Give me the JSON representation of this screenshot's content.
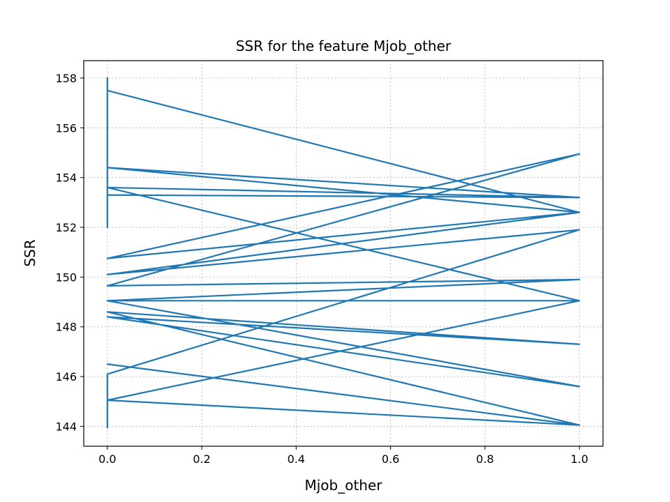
{
  "chart_data": {
    "type": "line",
    "title": "SSR for the feature Mjob_other",
    "xlabel": "Mjob_other",
    "ylabel": "SSR",
    "xlim": [
      -0.05,
      1.05
    ],
    "ylim": [
      143.2,
      158.7
    ],
    "xticks": [
      0.0,
      0.2,
      0.4,
      0.6,
      0.8,
      1.0
    ],
    "xtick_labels": [
      "0.0",
      "0.2",
      "0.4",
      "0.6",
      "0.8",
      "1.0"
    ],
    "yticks": [
      144,
      146,
      148,
      150,
      152,
      154,
      156,
      158
    ],
    "ytick_labels": [
      "144",
      "146",
      "148",
      "150",
      "152",
      "154",
      "156",
      "158"
    ],
    "grid": true,
    "series": [
      {
        "color": "#1f77b4",
        "x": [
          0,
          0,
          0,
          1,
          0,
          1,
          1,
          0,
          1,
          0,
          1,
          0,
          1,
          0,
          1,
          0,
          1,
          0,
          1,
          0,
          1,
          0,
          1,
          0,
          1,
          0,
          1,
          0,
          1,
          0,
          0
        ],
        "y": [
          158.0,
          152.0,
          157.5,
          152.6,
          154.4,
          153.2,
          153.2,
          153.3,
          153.2,
          153.6,
          149.05,
          149.05,
          145.6,
          148.4,
          147.3,
          148.6,
          144.05,
          146.5,
          144.05,
          145.05,
          149.05,
          149.05,
          149.9,
          149.65,
          154.95,
          150.75,
          152.6,
          150.1,
          151.9,
          146.1,
          143.95
        ]
      }
    ]
  }
}
